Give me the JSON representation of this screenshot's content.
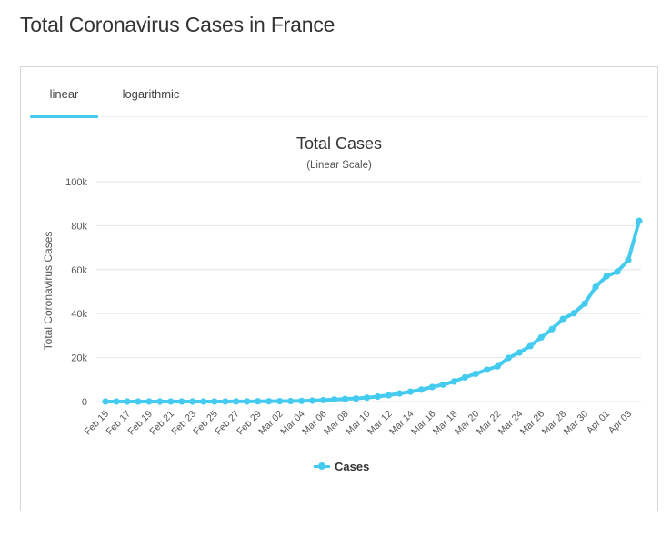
{
  "page": {
    "title": "Total Coronavirus Cases in France"
  },
  "tabs": [
    {
      "label": "linear",
      "active": true
    },
    {
      "label": "logarithmic",
      "active": false
    }
  ],
  "colors": {
    "series": "#45cbef",
    "grid": "#e6e6e6",
    "tab_active": "#45cbef"
  },
  "chart_data": {
    "type": "line",
    "title": "Total Cases",
    "subtitle": "(Linear Scale)",
    "ylabel": "Total Coronavirus Cases",
    "xlabel": "",
    "ylim": [
      0,
      100000
    ],
    "yticks": [
      0,
      20000,
      40000,
      60000,
      80000,
      100000
    ],
    "ytick_labels": [
      "0",
      "20k",
      "40k",
      "60k",
      "80k",
      "100k"
    ],
    "grid": true,
    "legend": "bottom-center",
    "x": [
      "Feb 15",
      "Feb 16",
      "Feb 17",
      "Feb 18",
      "Feb 19",
      "Feb 20",
      "Feb 21",
      "Feb 22",
      "Feb 23",
      "Feb 24",
      "Feb 25",
      "Feb 26",
      "Feb 27",
      "Feb 28",
      "Feb 29",
      "Mar 01",
      "Mar 02",
      "Mar 03",
      "Mar 04",
      "Mar 05",
      "Mar 06",
      "Mar 07",
      "Mar 08",
      "Mar 09",
      "Mar 10",
      "Mar 11",
      "Mar 12",
      "Mar 13",
      "Mar 14",
      "Mar 15",
      "Mar 16",
      "Mar 17",
      "Mar 18",
      "Mar 19",
      "Mar 20",
      "Mar 21",
      "Mar 22",
      "Mar 23",
      "Mar 24",
      "Mar 25",
      "Mar 26",
      "Mar 27",
      "Mar 28",
      "Mar 29",
      "Mar 30",
      "Mar 31",
      "Apr 01",
      "Apr 02",
      "Apr 03",
      "Apr 04"
    ],
    "x_tick_labels": [
      "Feb 15",
      "Feb 17",
      "Feb 19",
      "Feb 21",
      "Feb 23",
      "Feb 25",
      "Feb 27",
      "Feb 29",
      "Mar 02",
      "Mar 04",
      "Mar 06",
      "Mar 08",
      "Mar 10",
      "Mar 12",
      "Mar 14",
      "Mar 16",
      "Mar 18",
      "Mar 20",
      "Mar 22",
      "Mar 24",
      "Mar 26",
      "Mar 28",
      "Mar 30",
      "Apr 01",
      "Apr 03"
    ],
    "series": [
      {
        "name": "Cases",
        "values": [
          12,
          12,
          12,
          12,
          12,
          12,
          12,
          12,
          12,
          12,
          14,
          18,
          38,
          57,
          100,
          130,
          191,
          212,
          285,
          423,
          653,
          949,
          1209,
          1412,
          1784,
          2281,
          2876,
          3661,
          4499,
          5423,
          6633,
          7730,
          9134,
          10995,
          12612,
          14459,
          16018,
          19856,
          22304,
          25233,
          29155,
          32964,
          37575,
          40174,
          44550,
          52128,
          56989,
          59105,
          64338,
          82165
        ]
      }
    ]
  }
}
